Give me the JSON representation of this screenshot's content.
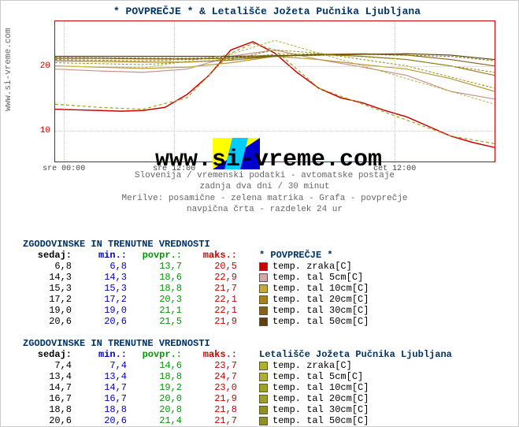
{
  "meta": {
    "site_url": "www.si-vreme.com",
    "watermark": "www.si-vreme.com",
    "subcaption_lines": [
      "Slovenija / vremenski podatki - avtomatske postaje",
      "zadnja dva dni / 30 minut",
      "Merilve: posamične - zelena matrika - Grafa - povprečje",
      "navpična črta - razdelek 24 ur"
    ]
  },
  "chart": {
    "title": "* POVPREČJE * & Letališče Jožeta Pučnika Ljubljana",
    "ylim": [
      5,
      27
    ],
    "yticks": [
      10,
      20
    ],
    "xticks": [
      {
        "pos": 0.02,
        "label": "sre 00:00"
      },
      {
        "pos": 0.27,
        "label": "sre 12:00"
      },
      {
        "pos": 0.77,
        "label": "čet 12:00"
      }
    ],
    "background": "#ffffff",
    "grid_color": "#cccccc",
    "border_color": "#c00000",
    "series": [
      {
        "name": "temp_zraka_avg",
        "color": "#c80000",
        "width": 1.5,
        "points": [
          [
            0,
            13.2
          ],
          [
            0.05,
            13.1
          ],
          [
            0.1,
            13.0
          ],
          [
            0.15,
            12.9
          ],
          [
            0.2,
            13.0
          ],
          [
            0.25,
            13.5
          ],
          [
            0.3,
            15.5
          ],
          [
            0.35,
            18.5
          ],
          [
            0.4,
            22.5
          ],
          [
            0.45,
            23.8
          ],
          [
            0.5,
            22.0
          ],
          [
            0.55,
            19.0
          ],
          [
            0.6,
            16.5
          ],
          [
            0.65,
            15.0
          ],
          [
            0.7,
            14.2
          ],
          [
            0.75,
            13.0
          ],
          [
            0.8,
            12.0
          ],
          [
            0.85,
            10.5
          ],
          [
            0.9,
            9.0
          ],
          [
            0.95,
            8.0
          ],
          [
            1.0,
            7.2
          ]
        ]
      },
      {
        "name": "tal5_avg",
        "color": "#c89090",
        "width": 1.2,
        "points": [
          [
            0,
            19.5
          ],
          [
            0.1,
            19.2
          ],
          [
            0.2,
            19.0
          ],
          [
            0.3,
            19.5
          ],
          [
            0.4,
            21.5
          ],
          [
            0.5,
            22.5
          ],
          [
            0.6,
            21.0
          ],
          [
            0.7,
            19.8
          ],
          [
            0.8,
            18.5
          ],
          [
            0.9,
            16.0
          ],
          [
            1.0,
            14.8
          ]
        ]
      },
      {
        "name": "tal10_avg",
        "color": "#b89830",
        "width": 1.2,
        "points": [
          [
            0,
            20.0
          ],
          [
            0.1,
            19.8
          ],
          [
            0.2,
            19.6
          ],
          [
            0.3,
            19.8
          ],
          [
            0.4,
            20.5
          ],
          [
            0.5,
            21.5
          ],
          [
            0.6,
            21.0
          ],
          [
            0.7,
            20.2
          ],
          [
            0.8,
            19.5
          ],
          [
            0.9,
            18.0
          ],
          [
            1.0,
            16.0
          ]
        ]
      },
      {
        "name": "tal20_avg",
        "color": "#a07820",
        "width": 1.2,
        "points": [
          [
            0,
            20.8
          ],
          [
            0.1,
            20.7
          ],
          [
            0.2,
            20.6
          ],
          [
            0.3,
            20.6
          ],
          [
            0.4,
            20.9
          ],
          [
            0.5,
            21.5
          ],
          [
            0.6,
            21.8
          ],
          [
            0.7,
            21.5
          ],
          [
            0.8,
            21.0
          ],
          [
            0.9,
            20.0
          ],
          [
            1.0,
            18.5
          ]
        ]
      },
      {
        "name": "tal30_avg",
        "color": "#886018",
        "width": 1.2,
        "points": [
          [
            0,
            21.2
          ],
          [
            0.1,
            21.2
          ],
          [
            0.2,
            21.1
          ],
          [
            0.3,
            21.1
          ],
          [
            0.4,
            21.2
          ],
          [
            0.5,
            21.5
          ],
          [
            0.6,
            21.8
          ],
          [
            0.7,
            21.9
          ],
          [
            0.8,
            21.7
          ],
          [
            0.9,
            21.0
          ],
          [
            1.0,
            20.0
          ]
        ]
      },
      {
        "name": "tal50_avg",
        "color": "#604010",
        "width": 1.2,
        "points": [
          [
            0,
            21.5
          ],
          [
            0.1,
            21.5
          ],
          [
            0.2,
            21.5
          ],
          [
            0.3,
            21.5
          ],
          [
            0.4,
            21.5
          ],
          [
            0.5,
            21.6
          ],
          [
            0.6,
            21.7
          ],
          [
            0.7,
            21.8
          ],
          [
            0.8,
            21.9
          ],
          [
            0.9,
            21.7
          ],
          [
            1.0,
            21.0
          ]
        ]
      },
      {
        "name": "temp_zraka_lj",
        "color": "#a0a020",
        "width": 1.2,
        "dash": "4 3",
        "points": [
          [
            0,
            14.0
          ],
          [
            0.1,
            13.5
          ],
          [
            0.2,
            13.2
          ],
          [
            0.3,
            15.0
          ],
          [
            0.4,
            22.0
          ],
          [
            0.45,
            23.5
          ],
          [
            0.5,
            22.5
          ],
          [
            0.55,
            19.5
          ],
          [
            0.6,
            16.5
          ],
          [
            0.7,
            14.0
          ],
          [
            0.8,
            11.5
          ],
          [
            0.9,
            9.0
          ],
          [
            1.0,
            7.8
          ]
        ]
      },
      {
        "name": "tal_lj_misc1",
        "color": "#b0b040",
        "width": 1.0,
        "dash": "3 2",
        "points": [
          [
            0,
            20.0
          ],
          [
            0.2,
            19.7
          ],
          [
            0.4,
            21.8
          ],
          [
            0.5,
            24.0
          ],
          [
            0.6,
            22.0
          ],
          [
            0.8,
            18.0
          ],
          [
            1.0,
            14.0
          ]
        ]
      },
      {
        "name": "tal_lj_misc2",
        "color": "#909018",
        "width": 1.0,
        "dash": "3 2",
        "points": [
          [
            0,
            20.5
          ],
          [
            0.2,
            20.2
          ],
          [
            0.4,
            21.0
          ],
          [
            0.5,
            22.5
          ],
          [
            0.6,
            22.0
          ],
          [
            0.8,
            20.0
          ],
          [
            1.0,
            16.5
          ]
        ]
      },
      {
        "name": "tal_lj_misc3",
        "color": "#808010",
        "width": 1.0,
        "dash": "3 2",
        "points": [
          [
            0,
            21.0
          ],
          [
            0.2,
            20.8
          ],
          [
            0.4,
            21.2
          ],
          [
            0.5,
            21.8
          ],
          [
            0.6,
            21.9
          ],
          [
            0.8,
            21.0
          ],
          [
            1.0,
            19.0
          ]
        ]
      },
      {
        "name": "tal_lj_misc4",
        "color": "#707008",
        "width": 1.0,
        "dash": "3 2",
        "points": [
          [
            0,
            21.3
          ],
          [
            0.3,
            21.2
          ],
          [
            0.5,
            21.5
          ],
          [
            0.7,
            21.8
          ],
          [
            0.9,
            21.5
          ],
          [
            1.0,
            20.8
          ]
        ]
      }
    ],
    "legend_tri": {
      "left_color": "#ffff00",
      "mid_color": "#00ccff",
      "right_color": "#0000cc"
    }
  },
  "table1": {
    "title": "ZGODOVINSKE IN TRENUTNE VREDNOSTI",
    "legend_title": "* POVPREČJE *",
    "headers": [
      "sedaj:",
      "min.:",
      "povpr.:",
      "maks.:"
    ],
    "rows": [
      [
        "6,8",
        "6,8",
        "13,7",
        "20,5"
      ],
      [
        "14,3",
        "14,3",
        "18,6",
        "22,9"
      ],
      [
        "15,3",
        "15,3",
        "18,8",
        "21,7"
      ],
      [
        "17,2",
        "17,2",
        "20,3",
        "22,1"
      ],
      [
        "19,0",
        "19,0",
        "21,1",
        "22,1"
      ],
      [
        "20,6",
        "20,6",
        "21,5",
        "21,9"
      ]
    ],
    "legend_items": [
      {
        "color": "#c80000",
        "label": "temp. zraka[C]"
      },
      {
        "color": "#d4a8a8",
        "label": "temp. tal  5cm[C]"
      },
      {
        "color": "#c8a838",
        "label": "temp. tal 10cm[C]"
      },
      {
        "color": "#a88020",
        "label": "temp. tal 20cm[C]"
      },
      {
        "color": "#886018",
        "label": "temp. tal 30cm[C]"
      },
      {
        "color": "#604010",
        "label": "temp. tal 50cm[C]"
      }
    ]
  },
  "table2": {
    "title": "ZGODOVINSKE IN TRENUTNE VREDNOSTI",
    "legend_title": "Letališče Jožeta Pučnika Ljubljana",
    "headers": [
      "sedaj:",
      "min.:",
      "povpr.:",
      "maks.:"
    ],
    "rows": [
      [
        "7,4",
        "7,4",
        "14,6",
        "23,7"
      ],
      [
        "13,4",
        "13,4",
        "18,8",
        "24,7"
      ],
      [
        "14,7",
        "14,7",
        "19,2",
        "23,0"
      ],
      [
        "16,7",
        "16,7",
        "20,0",
        "21,9"
      ],
      [
        "18,8",
        "18,8",
        "20,8",
        "21,8"
      ],
      [
        "20,6",
        "20,6",
        "21,4",
        "21,7"
      ]
    ],
    "legend_items": [
      {
        "color": "#b0b030",
        "label": "temp. zraka[C]"
      },
      {
        "color": "#b0b030",
        "label": "temp. tal  5cm[C]"
      },
      {
        "color": "#a0a028",
        "label": "temp. tal 10cm[C]"
      },
      {
        "color": "#a0a028",
        "label": "temp. tal 20cm[C]"
      },
      {
        "color": "#909020",
        "label": "temp. tal 30cm[C]"
      },
      {
        "color": "#909020",
        "label": "temp. tal 50cm[C]"
      }
    ]
  }
}
